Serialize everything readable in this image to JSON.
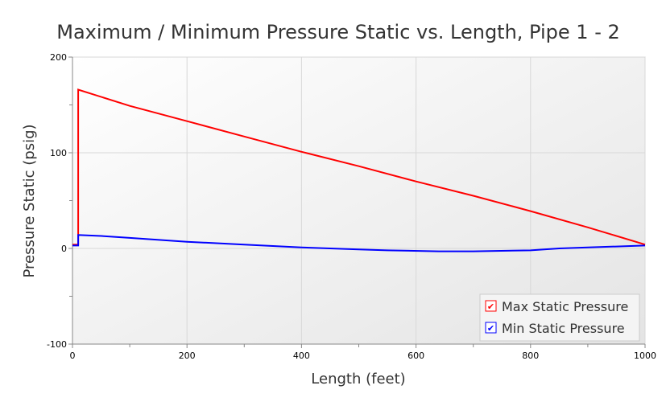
{
  "chart_data": {
    "type": "line",
    "title": "Maximum / Minimum Pressure Static vs. Length, Pipe 1 - 2",
    "xlabel": "Length (feet)",
    "ylabel": "Pressure Static (psig)",
    "xlim": [
      0,
      1000
    ],
    "ylim": [
      -100,
      200
    ],
    "xticks": [
      0,
      200,
      400,
      600,
      800,
      1000
    ],
    "yticks": [
      -100,
      0,
      100,
      200
    ],
    "grid": true,
    "legend_position": "bottom-right",
    "series": [
      {
        "name": "Max Static Pressure",
        "color": "#ff0000",
        "x": [
          0,
          10,
          10,
          100,
          200,
          300,
          400,
          500,
          600,
          700,
          800,
          900,
          1000
        ],
        "y": [
          4,
          4,
          166,
          149,
          133,
          117,
          101,
          86,
          70,
          55,
          39,
          22,
          4
        ]
      },
      {
        "name": "Min Static Pressure",
        "color": "#0000ff",
        "x": [
          0,
          10,
          10,
          50,
          100,
          200,
          300,
          400,
          450,
          500,
          550,
          640,
          700,
          800,
          850,
          900,
          950,
          1000
        ],
        "y": [
          3,
          3,
          14,
          13,
          11,
          7,
          4,
          1,
          0,
          -1,
          -2,
          -3,
          -3,
          -2,
          0,
          1,
          2,
          3
        ]
      }
    ]
  }
}
